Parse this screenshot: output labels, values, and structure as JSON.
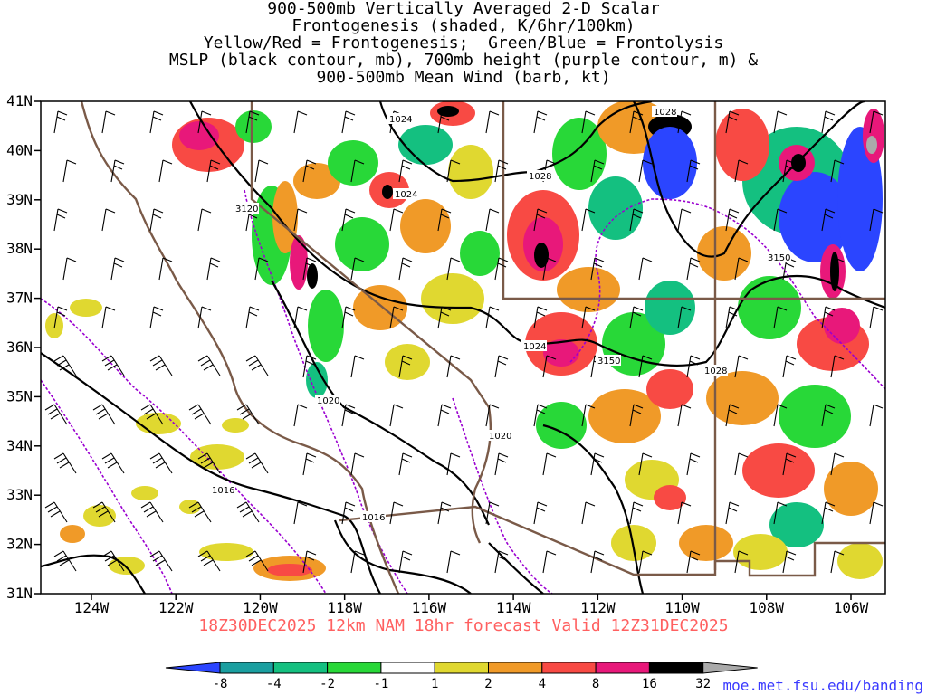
{
  "title": {
    "line1": "900-500mb Vertically Averaged 2-D Scalar",
    "line2": "Frontogenesis (shaded, K/6hr/100km)",
    "line3": "Yellow/Red = Frontogenesis;  Green/Blue = Frontolysis",
    "line4": "MSLP (black contour, mb), 700mb height (purple contour, m) &",
    "line5": "900-500mb Mean Wind (barb, kt)"
  },
  "footer": {
    "valid_text": "18Z30DEC2025 12km NAM 18hr forecast Valid 12Z31DEC2025",
    "url": "moe.met.fsu.edu/banding"
  },
  "axes": {
    "lat_labels": [
      "41N",
      "40N",
      "39N",
      "38N",
      "37N",
      "36N",
      "35N",
      "34N",
      "33N",
      "32N",
      "31N"
    ],
    "lon_labels": [
      "124W",
      "122W",
      "120W",
      "118W",
      "116W",
      "114W",
      "112W",
      "110W",
      "108W",
      "106W"
    ]
  },
  "contour_labels": {
    "mslp": [
      "1024",
      "1024",
      "1028",
      "1028",
      "1024",
      "1028",
      "1020",
      "1020",
      "1016",
      "1016"
    ],
    "height": [
      "3120",
      "3150",
      "3150"
    ]
  },
  "colorbar": {
    "ticks": [
      "-8",
      "-4",
      "-2",
      "-1",
      "1",
      "2",
      "4",
      "8",
      "16",
      "32"
    ],
    "colors": [
      "#2b45ff",
      "#1a9fa0",
      "#14c080",
      "#28d838",
      "#ffffff",
      "#e0d830",
      "#f09a28",
      "#f84a44",
      "#e8187a",
      "#000000",
      "#aaaaaa"
    ]
  },
  "colors": {
    "mslp_contour": "#000000",
    "height_contour": "#9a00d0",
    "borders": "#7a5a48",
    "footer_text": "#ff6060"
  }
}
